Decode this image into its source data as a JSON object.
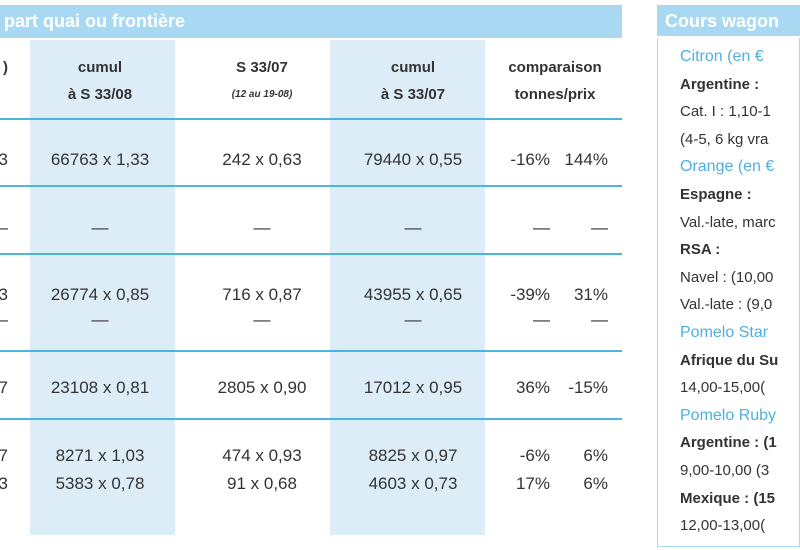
{
  "left": {
    "title": "part quai ou frontière",
    "headers": [
      [
        ")"
      ],
      [
        "cumul",
        "à S 33/08"
      ],
      [
        "S 33/07",
        "(12 au 19-08)"
      ],
      [
        "cumul",
        "à S 33/07"
      ],
      [
        "comparaison",
        "tonnes/prix"
      ]
    ],
    "rows": [
      [
        "3",
        "66763 x 1,33",
        "242 x 0,63",
        "79440 x 0,55",
        "-16%",
        "144%"
      ],
      [
        "—",
        "—",
        "—",
        "—",
        "—",
        "—"
      ],
      [
        "3",
        "26774 x 0,85",
        "716 x 0,87",
        "43955 x 0,65",
        "-39%",
        "31%"
      ],
      [
        "—",
        "—",
        "—",
        "—",
        "—",
        "—"
      ],
      [
        "7",
        "23108 x 0,81",
        "2805 x 0,90",
        "17012 x 0,95",
        "36%",
        "-15%"
      ],
      [
        "7",
        "8271 x 1,03",
        "474 x 0,93",
        "8825 x 0,97",
        "-6%",
        "6%"
      ],
      [
        "3",
        "5383 x 0,78",
        "91 x 0,68",
        "4603 x 0,73",
        "17%",
        "6%"
      ]
    ]
  },
  "right": {
    "title": "Cours wagon",
    "sections": [
      {
        "heading": "Citron (en €",
        "entries": [
          {
            "origin": "Argentine :",
            "lines": [
              "Cat. I : 1,10-1",
              "(4-5, 6 kg vra"
            ]
          }
        ]
      },
      {
        "heading": "Orange (en €",
        "entries": [
          {
            "origin": "Espagne :",
            "lines": [
              "Val.-late, marc"
            ]
          },
          {
            "origin": "RSA :",
            "lines": [
              "Navel : (10,00",
              "Val.-late : (9,0"
            ]
          }
        ]
      },
      {
        "heading": "Pomelo Star",
        "entries": [
          {
            "origin": "Afrique du Su",
            "lines": [
              "14,00-15,00("
            ]
          }
        ]
      },
      {
        "heading": "Pomelo Ruby",
        "entries": [
          {
            "origin": "Argentine : (1",
            "lines": [
              "9,00-10,00 (3"
            ]
          },
          {
            "origin": "Mexique : (15",
            "lines": [
              "12,00-13,00("
            ]
          }
        ]
      }
    ]
  }
}
